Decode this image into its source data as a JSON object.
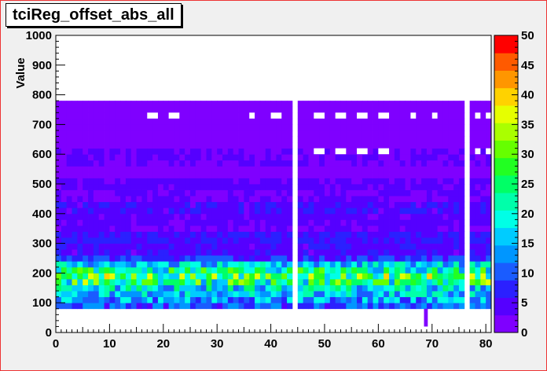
{
  "title": "tciReg_offset_abs_all",
  "chart_data": {
    "type": "heatmap",
    "title": "tciReg_offset_abs_all",
    "xlabel": "",
    "ylabel": "Value",
    "xlim": [
      0,
      81
    ],
    "ylim": [
      0,
      1000
    ],
    "x_ticks": [
      "0",
      "10",
      "20",
      "30",
      "40",
      "50",
      "60",
      "70",
      "80"
    ],
    "y_ticks": [
      "0",
      "100",
      "200",
      "300",
      "400",
      "500",
      "600",
      "700",
      "800",
      "900",
      "1000"
    ],
    "z_range": [
      0,
      50
    ],
    "z_ticks": [
      "0",
      "5",
      "10",
      "15",
      "20",
      "25",
      "30",
      "35",
      "40",
      "45",
      "50"
    ],
    "palette": [
      "#7f00ff",
      "#5500ff",
      "#2b20ff",
      "#1a5cff",
      "#0096ff",
      "#00ccff",
      "#00ffe6",
      "#00ffaa",
      "#00ff66",
      "#22ff22",
      "#66ff00",
      "#aaff00",
      "#e6ff00",
      "#ffd200",
      "#ff9600",
      "#ff5a00",
      "#ff0000"
    ],
    "x_bins": 81,
    "y_bin_width": 20,
    "empty_columns": [
      44,
      76
    ],
    "column_colorbar_note": "",
    "band_profile": [
      {
        "y": [
          80,
          100
        ],
        "z": 10
      },
      {
        "y": [
          100,
          120
        ],
        "z": 14
      },
      {
        "y": [
          120,
          140
        ],
        "z": 16
      },
      {
        "y": [
          140,
          160
        ],
        "z": 18
      },
      {
        "y": [
          160,
          180
        ],
        "z": 25
      },
      {
        "y": [
          180,
          200
        ],
        "z": 27
      },
      {
        "y": [
          200,
          220
        ],
        "z": 22
      },
      {
        "y": [
          220,
          240
        ],
        "z": 16
      },
      {
        "y": [
          240,
          260
        ],
        "z": 8
      },
      {
        "y": [
          260,
          300
        ],
        "z": 5
      },
      {
        "y": [
          300,
          340
        ],
        "z": 6
      },
      {
        "y": [
          340,
          360
        ],
        "z": 3
      },
      {
        "y": [
          360,
          400
        ],
        "z": 4
      },
      {
        "y": [
          400,
          440
        ],
        "z": 5
      },
      {
        "y": [
          440,
          480
        ],
        "z": 3
      },
      {
        "y": [
          480,
          520
        ],
        "z": 4
      },
      {
        "y": [
          520,
          560
        ],
        "z": 2
      },
      {
        "y": [
          560,
          620
        ],
        "z": 3
      },
      {
        "y": [
          620,
          680
        ],
        "z": 2
      },
      {
        "y": [
          680,
          700
        ],
        "z": 1
      },
      {
        "y": [
          700,
          770
        ],
        "z": 0.5
      }
    ],
    "white_cells": [
      {
        "x": [
          17,
          19
        ],
        "y": [
          720,
          740
        ]
      },
      {
        "x": [
          21,
          23
        ],
        "y": [
          720,
          740
        ]
      },
      {
        "x": [
          36,
          37
        ],
        "y": [
          720,
          740
        ]
      },
      {
        "x": [
          40,
          42
        ],
        "y": [
          720,
          740
        ]
      },
      {
        "x": [
          48,
          50
        ],
        "y": [
          720,
          740
        ]
      },
      {
        "x": [
          52,
          54
        ],
        "y": [
          720,
          740
        ]
      },
      {
        "x": [
          56,
          58
        ],
        "y": [
          720,
          740
        ]
      },
      {
        "x": [
          60,
          62
        ],
        "y": [
          720,
          740
        ]
      },
      {
        "x": [
          66,
          67
        ],
        "y": [
          720,
          740
        ]
      },
      {
        "x": [
          70,
          71
        ],
        "y": [
          720,
          740
        ]
      },
      {
        "x": [
          78,
          79
        ],
        "y": [
          720,
          740
        ]
      },
      {
        "x": [
          80,
          81
        ],
        "y": [
          720,
          740
        ]
      },
      {
        "x": [
          48,
          50
        ],
        "y": [
          600,
          620
        ]
      },
      {
        "x": [
          52,
          54
        ],
        "y": [
          600,
          620
        ]
      },
      {
        "x": [
          56,
          58
        ],
        "y": [
          600,
          620
        ]
      },
      {
        "x": [
          60,
          62
        ],
        "y": [
          600,
          620
        ]
      },
      {
        "x": [
          78,
          79
        ],
        "y": [
          600,
          620
        ]
      },
      {
        "x": [
          80,
          81
        ],
        "y": [
          600,
          620
        ]
      }
    ],
    "outlier": {
      "x": [
        68.5,
        69.2
      ],
      "y": [
        20,
        80
      ],
      "z": 1
    }
  }
}
